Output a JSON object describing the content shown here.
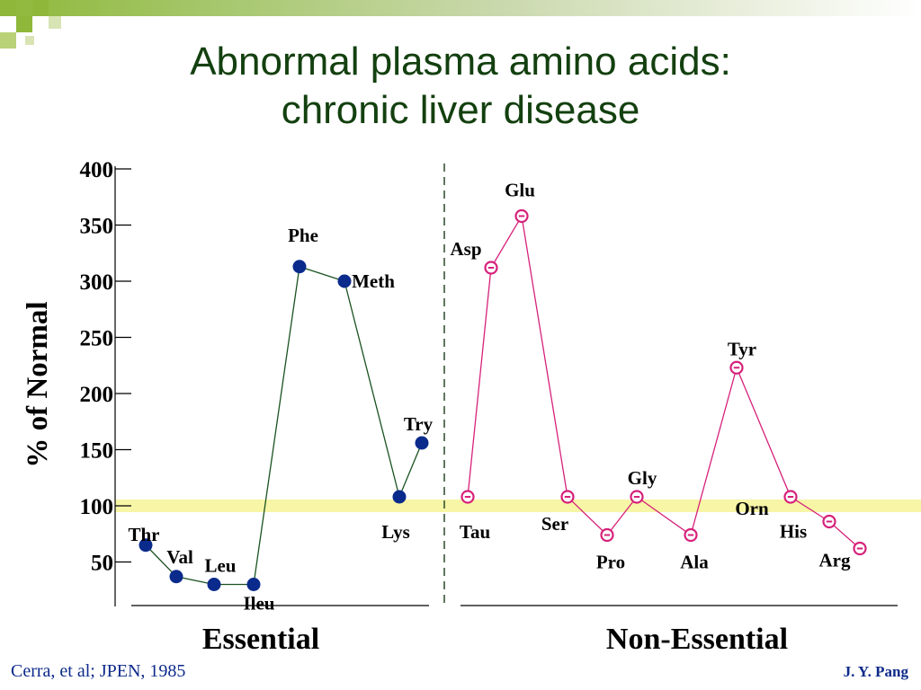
{
  "slide": {
    "title_line1": "Abnormal plasma amino acids:",
    "title_line2": "chronic liver disease",
    "citation": "Cerra, et al; JPEN, 1985",
    "author": "J. Y. Pang"
  },
  "colors": {
    "title": "#13400f",
    "essential_line": "#1a5220",
    "essential_marker": "#0a2a8c",
    "nonessential": "#d6217a",
    "highlight_band": "#f7f5a6",
    "footer": "#0d2a8a",
    "deco_green": "#8fb83a"
  },
  "chart_data": {
    "type": "line",
    "ylabel": "% of Normal",
    "ylim": [
      0,
      400
    ],
    "yticks": [
      50,
      100,
      150,
      200,
      250,
      300,
      350,
      400
    ],
    "reference_line": 100,
    "groups": [
      {
        "label": "Essential",
        "marker": "filled-circle",
        "points": [
          {
            "name": "Thr",
            "value": 65
          },
          {
            "name": "Val",
            "value": 37
          },
          {
            "name": "Leu",
            "value": 30
          },
          {
            "name": "Ileu",
            "value": 30
          },
          {
            "name": "Phe",
            "value": 313
          },
          {
            "name": "Meth",
            "value": 300
          },
          {
            "name": "Lys",
            "value": 108
          },
          {
            "name": "Try",
            "value": 156
          }
        ]
      },
      {
        "label": "Non-Essential",
        "marker": "open-circle",
        "points": [
          {
            "name": "Tau",
            "value": 108
          },
          {
            "name": "Asp",
            "value": 312
          },
          {
            "name": "Glu",
            "value": 358
          },
          {
            "name": "Ser",
            "value": 108
          },
          {
            "name": "Pro",
            "value": 74
          },
          {
            "name": "Gly",
            "value": 108
          },
          {
            "name": "Ala",
            "value": 74
          },
          {
            "name": "Tyr",
            "value": 223
          },
          {
            "name": "Orn",
            "value": 108
          },
          {
            "name": "His",
            "value": 86
          },
          {
            "name": "Arg",
            "value": 62
          }
        ]
      }
    ]
  }
}
